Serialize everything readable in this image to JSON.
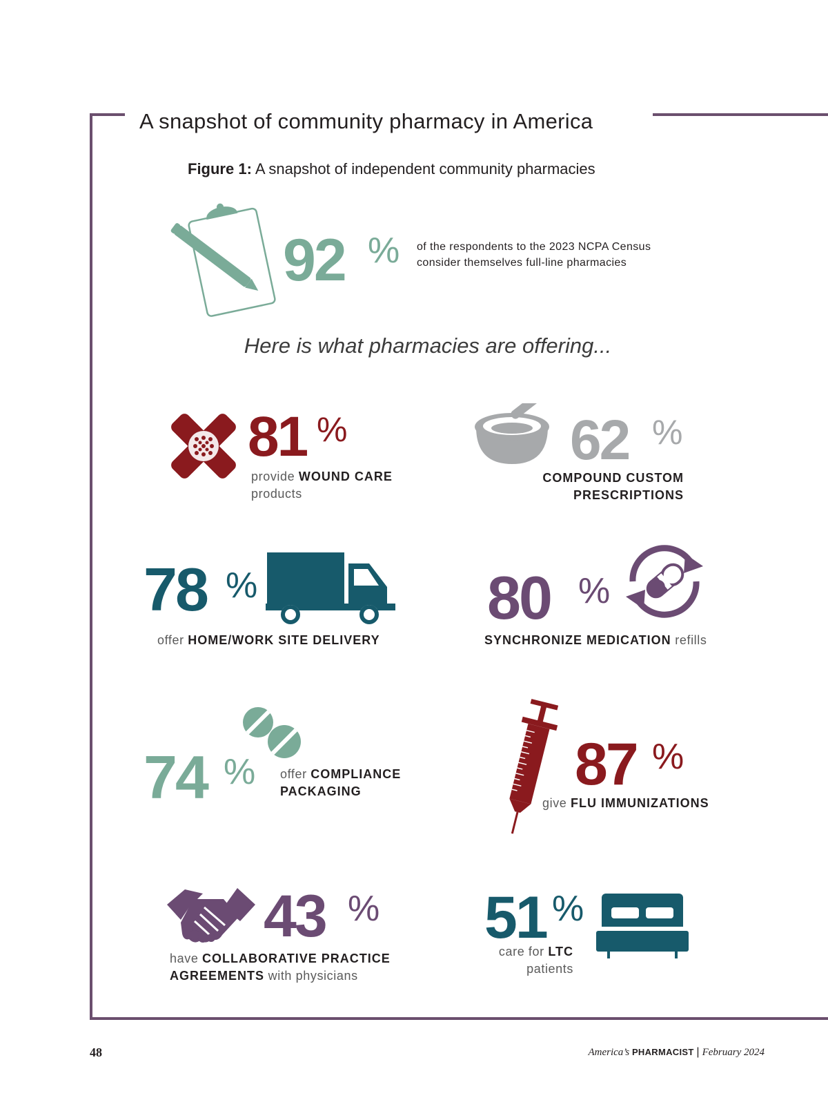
{
  "box_title": "A snapshot of community pharmacy in America",
  "figure": {
    "label": "Figure 1:",
    "title": "A snapshot of independent community pharmacies"
  },
  "headline_stat": {
    "value": "92",
    "percent": "%",
    "line1": "of the respondents to the 2023 NCPA Census",
    "line2": "consider themselves full-line pharmacies",
    "icon": "clipboard-pencil-icon"
  },
  "offering_heading": "Here is what pharmacies are offering...",
  "stats": {
    "wound_care": {
      "value": "81",
      "percent": "%",
      "pre": "provide ",
      "bold": "WOUND CARE",
      "post": "products",
      "icon": "bandage-icon",
      "color": "#8a1a1e"
    },
    "compound": {
      "value": "62",
      "percent": "%",
      "bold1": "COMPOUND CUSTOM",
      "bold2": "PRESCRIPTIONS",
      "icon": "mortar-pestle-icon",
      "color": "#a7a9ab"
    },
    "delivery": {
      "value": "78",
      "percent": "%",
      "pre": "offer ",
      "bold": "HOME/WORK SITE DELIVERY",
      "icon": "truck-icon",
      "color": "#175a6b"
    },
    "med_sync": {
      "value": "80",
      "percent": "%",
      "bold": "SYNCHRONIZE MEDICATION",
      "post": " refills",
      "icon": "pill-refresh-icon",
      "color": "#6b4b73"
    },
    "compliance": {
      "value": "74",
      "percent": "%",
      "pre": "offer ",
      "bold1": "COMPLIANCE",
      "bold2": "PACKAGING",
      "icon": "tablets-icon",
      "color": "#7aab98"
    },
    "flu": {
      "value": "87",
      "percent": "%",
      "pre": "give ",
      "bold": "FLU IMMUNIZATIONS",
      "icon": "syringe-icon",
      "color": "#8a1a1e"
    },
    "cpa": {
      "value": "43",
      "percent": "%",
      "pre": "have ",
      "bold1": "COLLABORATIVE PRACTICE",
      "bold2": "AGREEMENTS",
      "post": " with physicians",
      "icon": "handshake-icon",
      "color": "#6b4b73"
    },
    "ltc": {
      "value": "51",
      "percent": "%",
      "pre": "care for ",
      "bold": "LTC",
      "post": "patients",
      "icon": "bed-icon",
      "color": "#175a6b"
    }
  },
  "footer": {
    "page_number": "48",
    "magazine_italic": "America’s",
    "magazine_bold": "PHARMACIST",
    "separator": "|",
    "date": "February 2024"
  }
}
